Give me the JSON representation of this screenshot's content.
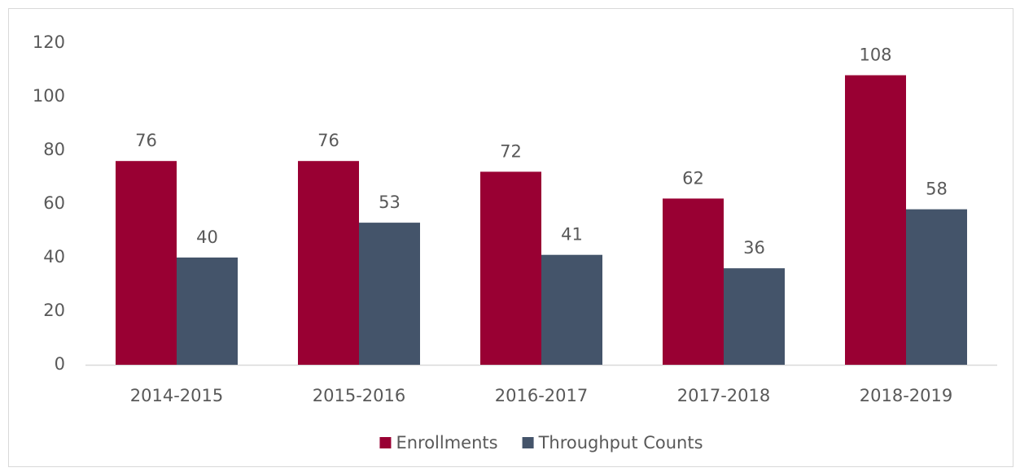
{
  "chart_data": {
    "type": "bar",
    "categories": [
      "2014-2015",
      "2015-2016",
      "2016-2017",
      "2017-2018",
      "2018-2019"
    ],
    "series": [
      {
        "name": "Enrollments",
        "color": "#990033",
        "values": [
          76,
          76,
          72,
          62,
          108
        ]
      },
      {
        "name": "Throughput Counts",
        "color": "#44546a",
        "values": [
          40,
          53,
          41,
          36,
          58
        ]
      }
    ],
    "ylim": [
      0,
      120
    ],
    "yticks": [
      0,
      20,
      40,
      60,
      80,
      100,
      120
    ],
    "grid": false,
    "legend": "bottom"
  }
}
